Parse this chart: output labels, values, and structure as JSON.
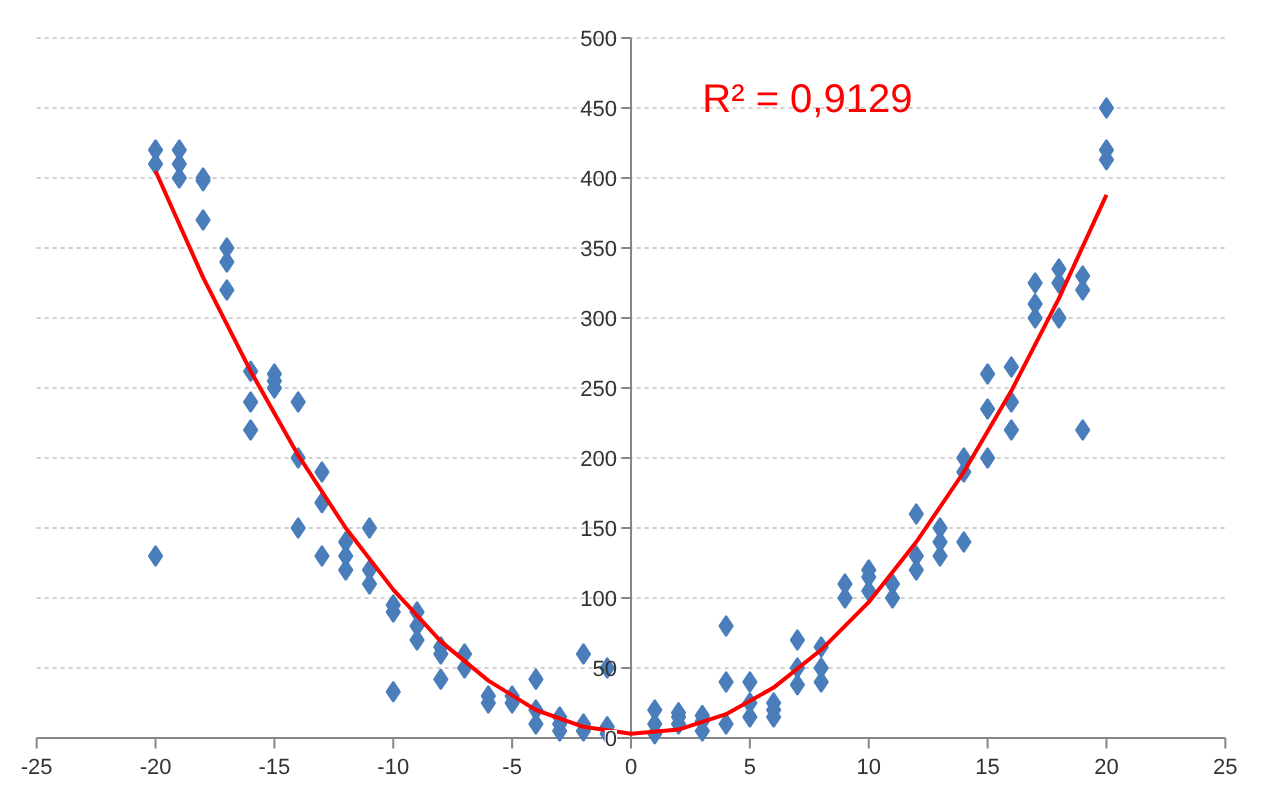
{
  "chart_data": {
    "type": "scatter",
    "marker": "diamond",
    "grid": "y",
    "xlim": [
      -25,
      25
    ],
    "ylim": [
      0,
      500
    ],
    "xticks": [
      -25,
      -20,
      -15,
      -10,
      -5,
      0,
      5,
      10,
      15,
      20,
      25
    ],
    "yticks": [
      0,
      50,
      100,
      150,
      200,
      250,
      300,
      350,
      400,
      450,
      500
    ],
    "annotations": [
      "R² = 0,9129"
    ],
    "series": [
      {
        "color": "#4a7ebb",
        "x": [
          -20,
          -20,
          -20,
          -19,
          -19,
          -19,
          -18,
          -18,
          -18,
          -17,
          -17,
          -17,
          -16,
          -16,
          -16,
          -15,
          -15,
          -15,
          -14,
          -14,
          -14,
          -13,
          -13,
          -13,
          -12,
          -12,
          -12,
          -11,
          -11,
          -11,
          -10,
          -10,
          -10,
          -9,
          -9,
          -9,
          -8,
          -8,
          -8,
          -7,
          -7,
          -6,
          -6,
          -5,
          -5,
          -4,
          -4,
          -4,
          -3,
          -3,
          -3,
          -2,
          -2,
          -2,
          -1,
          -1,
          -1,
          1,
          1,
          1,
          2,
          2,
          2,
          3,
          3,
          3,
          4,
          4,
          4,
          5,
          5,
          5,
          6,
          6,
          6,
          7,
          7,
          7,
          8,
          8,
          8,
          9,
          9,
          10,
          10,
          10,
          11,
          11,
          12,
          12,
          12,
          13,
          13,
          13,
          14,
          14,
          14,
          15,
          15,
          15,
          16,
          16,
          16,
          17,
          17,
          17,
          18,
          18,
          18,
          19,
          19,
          19,
          20,
          20,
          20
        ],
        "values": [
          420,
          410,
          130,
          420,
          410,
          400,
          400,
          398,
          370,
          350,
          340,
          320,
          262,
          240,
          220,
          260,
          255,
          250,
          240,
          200,
          150,
          190,
          168,
          130,
          140,
          130,
          120,
          150,
          120,
          110,
          95,
          90,
          33,
          90,
          80,
          70,
          65,
          60,
          42,
          60,
          50,
          30,
          25,
          30,
          25,
          42,
          20,
          10,
          15,
          10,
          5,
          60,
          10,
          5,
          50,
          8,
          3,
          20,
          10,
          3,
          18,
          15,
          10,
          16,
          12,
          5,
          80,
          40,
          10,
          40,
          25,
          15,
          25,
          20,
          15,
          70,
          50,
          38,
          65,
          50,
          40,
          110,
          100,
          120,
          115,
          105,
          110,
          100,
          160,
          130,
          120,
          150,
          140,
          130,
          200,
          190,
          140,
          260,
          235,
          200,
          265,
          240,
          220,
          325,
          310,
          300,
          335,
          325,
          300,
          330,
          320,
          220,
          450,
          420,
          413
        ]
      },
      {
        "type": "line",
        "marker": "none",
        "color": "#ff0000",
        "x": [
          -20,
          -18,
          -16,
          -14,
          -12,
          -10,
          -8,
          -6,
          -4,
          -2,
          0,
          2,
          4,
          6,
          8,
          10,
          12,
          14,
          16,
          18,
          20
        ],
        "values": [
          405,
          329,
          262,
          202,
          150,
          106,
          69,
          41,
          20,
          8,
          3,
          6,
          17,
          36,
          63,
          97,
          140,
          190,
          248,
          314,
          388
        ]
      }
    ]
  }
}
